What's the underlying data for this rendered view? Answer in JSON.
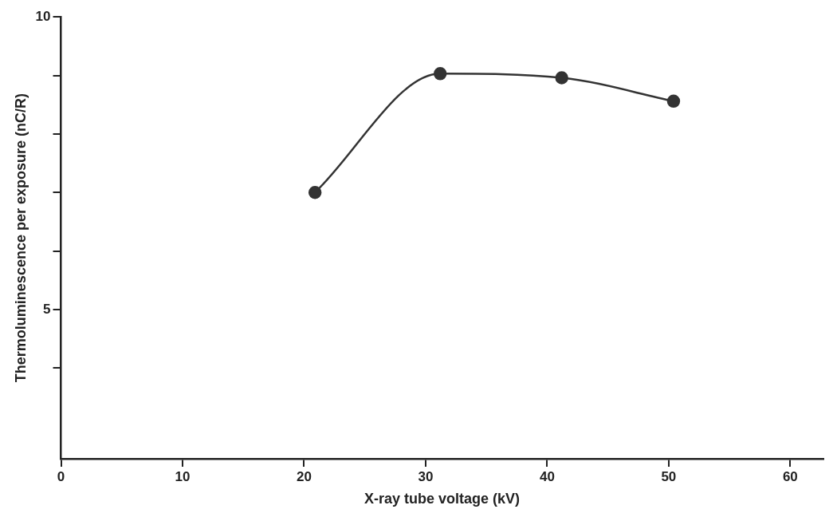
{
  "chart_data": {
    "type": "line",
    "xlabel": "X-ray tube voltage (kV)",
    "ylabel": "Thermoluminescence per exposure (nC/R)",
    "x": [
      20.9,
      31.2,
      41.2,
      50.4
    ],
    "series": [
      {
        "color": "#333333",
        "values": [
          7.0,
          9.03,
          8.96,
          8.56
        ]
      }
    ],
    "xlim": [
      0,
      62.7
    ],
    "xticks": [
      0,
      10,
      20,
      30,
      40,
      50,
      60
    ],
    "ylim": [
      2.45,
      10
    ],
    "yticks": [
      {
        "value": 4,
        "label": null
      },
      5,
      {
        "value": 6,
        "label": null
      },
      {
        "value": 7,
        "label": null
      },
      {
        "value": 8,
        "label": null
      },
      {
        "value": 9,
        "label": null
      },
      10
    ],
    "grid": false,
    "legend": false,
    "marker": "circle",
    "line_style": "solid"
  }
}
